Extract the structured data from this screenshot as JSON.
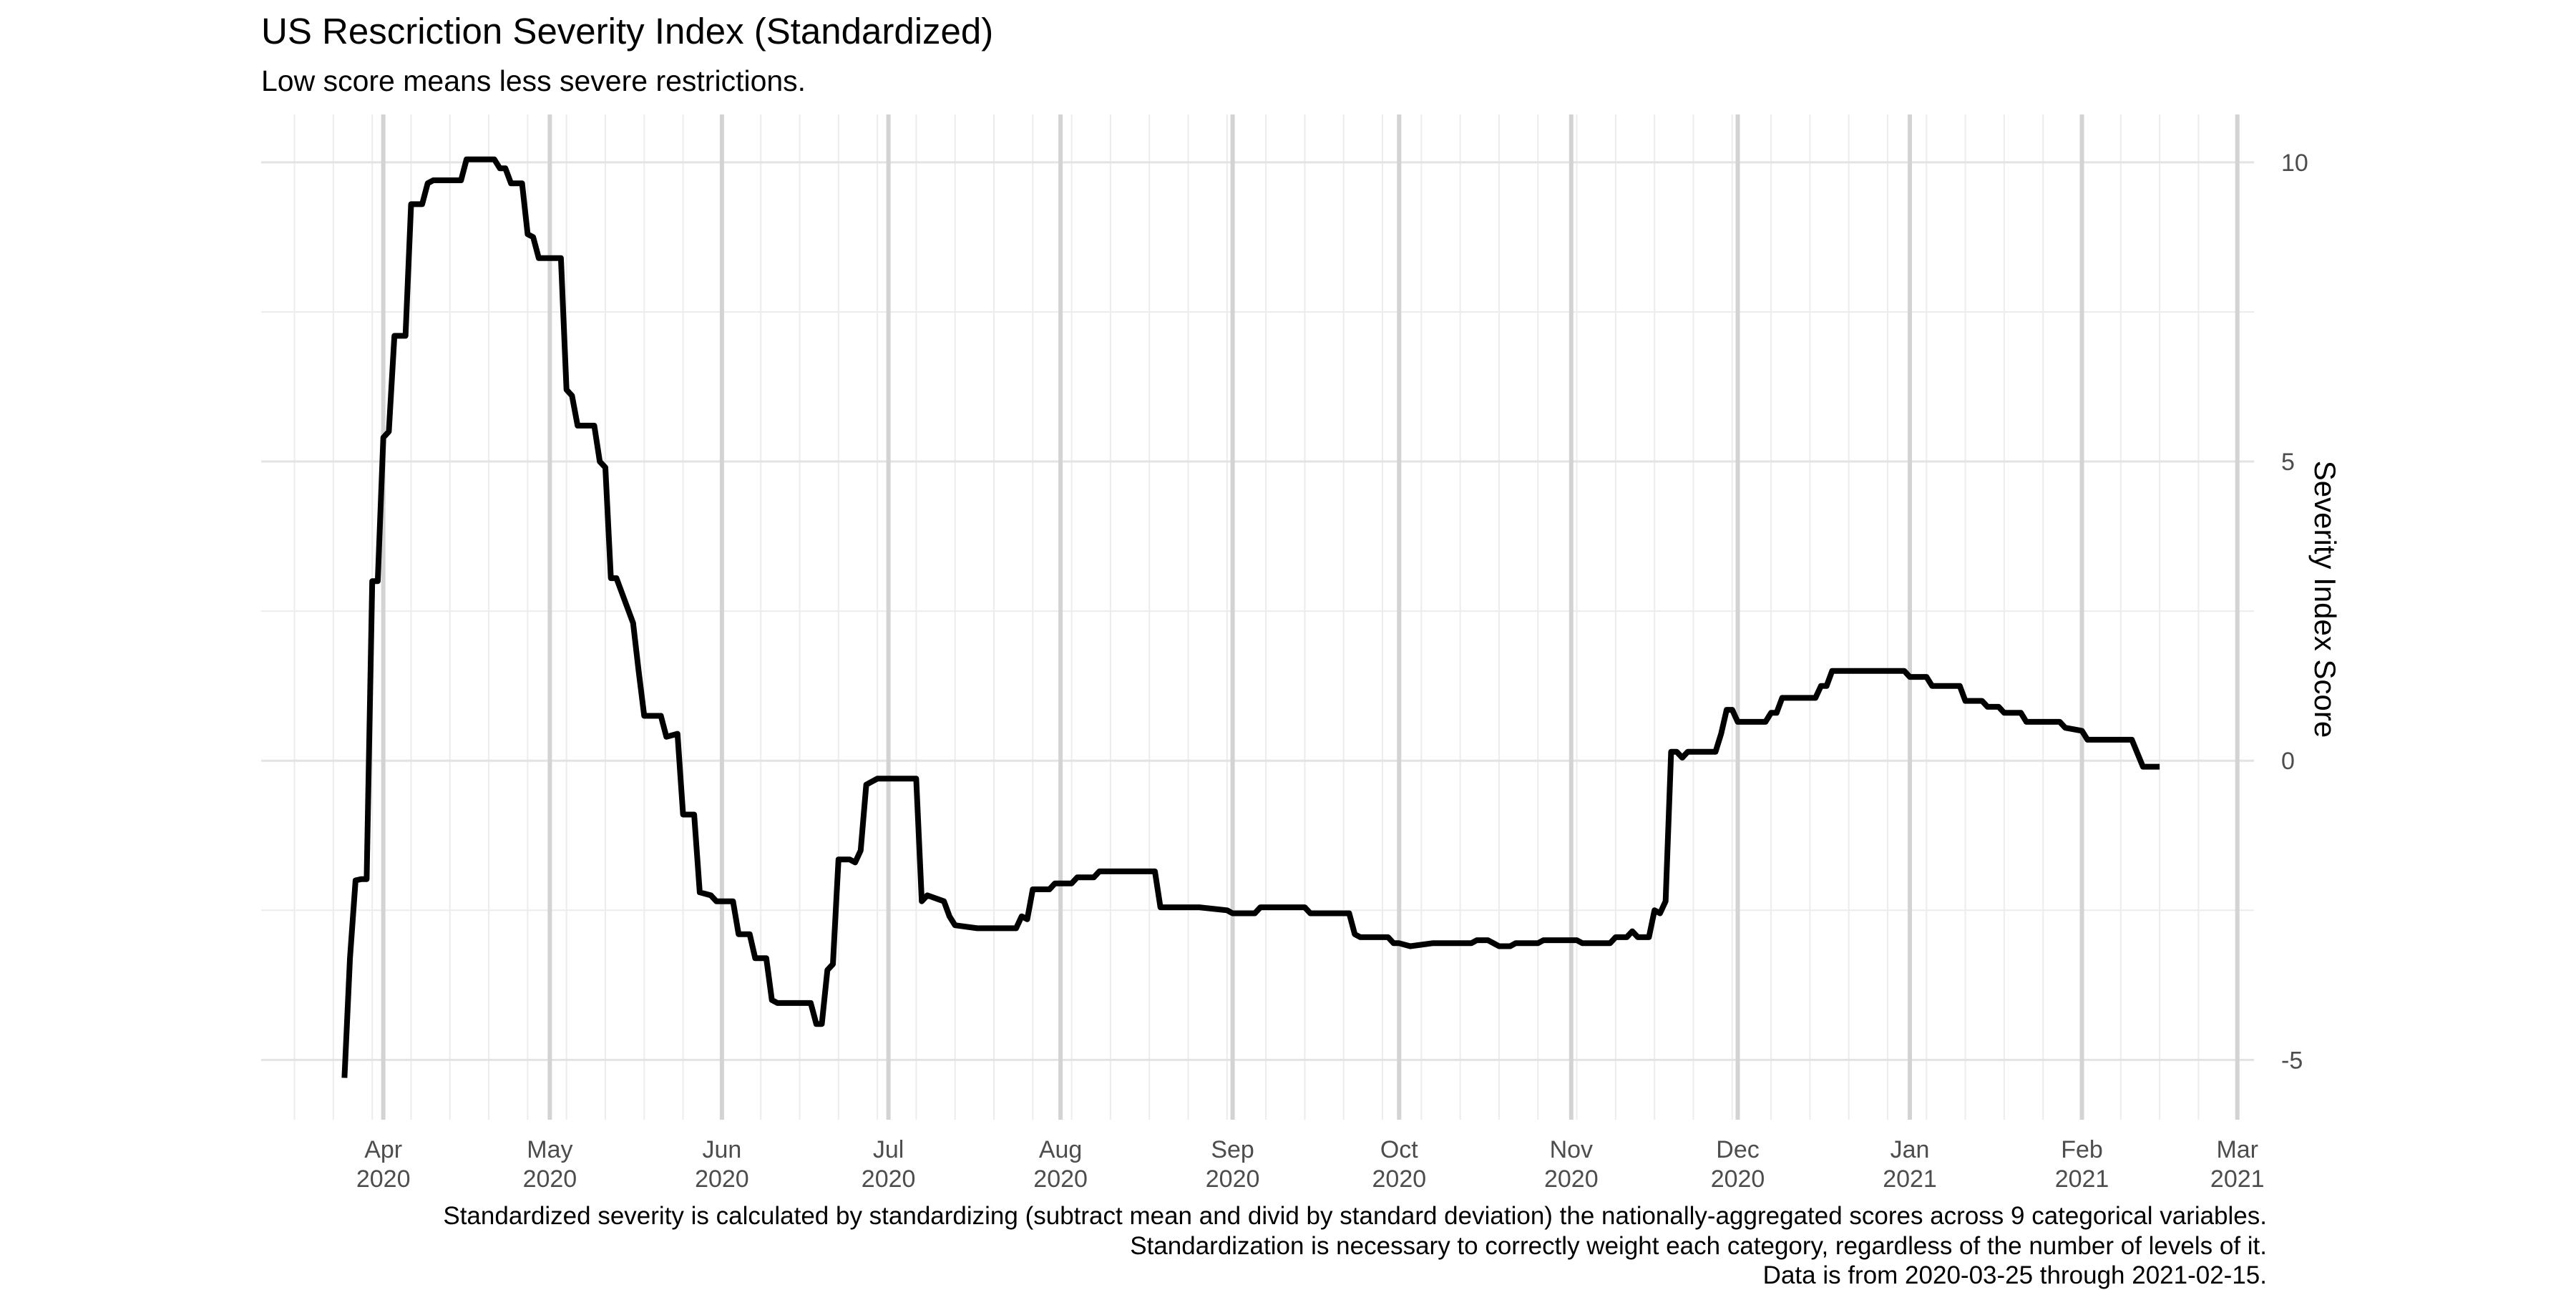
{
  "chart_data": {
    "type": "line",
    "title": "US Rescriction Severity Index (Standardized)",
    "subtitle": "Low score means less severe restrictions.",
    "xlabel": "",
    "ylabel": "Severity Index Score",
    "ylim": [
      -6.0,
      10.8
    ],
    "xlim": [
      "2020-03-10",
      "2021-03-04"
    ],
    "y_ticks": [
      -5,
      0,
      5,
      10
    ],
    "y_axis_position": "right",
    "grid": true,
    "legend": "none",
    "line_color": "#000000",
    "x_ticks": [
      {
        "date": "2020-04-01",
        "month": "Apr",
        "year": "2020"
      },
      {
        "date": "2020-05-01",
        "month": "May",
        "year": "2020"
      },
      {
        "date": "2020-06-01",
        "month": "Jun",
        "year": "2020"
      },
      {
        "date": "2020-07-01",
        "month": "Jul",
        "year": "2020"
      },
      {
        "date": "2020-08-01",
        "month": "Aug",
        "year": "2020"
      },
      {
        "date": "2020-09-01",
        "month": "Sep",
        "year": "2020"
      },
      {
        "date": "2020-10-01",
        "month": "Oct",
        "year": "2020"
      },
      {
        "date": "2020-11-01",
        "month": "Nov",
        "year": "2020"
      },
      {
        "date": "2020-12-01",
        "month": "Dec",
        "year": "2020"
      },
      {
        "date": "2021-01-01",
        "month": "Jan",
        "year": "2021"
      },
      {
        "date": "2021-02-01",
        "month": "Feb",
        "year": "2021"
      },
      {
        "date": "2021-03-01",
        "month": "Mar",
        "year": "2021"
      }
    ],
    "series": [
      {
        "values": [
          [
            "2020-03-25",
            -5.3
          ],
          [
            "2020-03-26",
            -3.3
          ],
          [
            "2020-03-27",
            -2.0
          ],
          [
            "2020-03-28",
            -1.98
          ],
          [
            "2020-03-29",
            -1.98
          ],
          [
            "2020-03-30",
            3.0
          ],
          [
            "2020-03-31",
            3.0
          ],
          [
            "2020-04-01",
            5.4
          ],
          [
            "2020-04-02",
            5.5
          ],
          [
            "2020-04-03",
            7.1
          ],
          [
            "2020-04-05",
            7.1
          ],
          [
            "2020-04-06",
            9.3
          ],
          [
            "2020-04-08",
            9.3
          ],
          [
            "2020-04-09",
            9.65
          ],
          [
            "2020-04-10",
            9.7
          ],
          [
            "2020-04-15",
            9.7
          ],
          [
            "2020-04-16",
            10.05
          ],
          [
            "2020-04-21",
            10.05
          ],
          [
            "2020-04-22",
            9.9
          ],
          [
            "2020-04-23",
            9.9
          ],
          [
            "2020-04-24",
            9.65
          ],
          [
            "2020-04-26",
            9.65
          ],
          [
            "2020-04-27",
            8.8
          ],
          [
            "2020-04-28",
            8.75
          ],
          [
            "2020-04-29",
            8.4
          ],
          [
            "2020-05-03",
            8.4
          ],
          [
            "2020-05-04",
            6.2
          ],
          [
            "2020-05-05",
            6.1
          ],
          [
            "2020-05-06",
            5.6
          ],
          [
            "2020-05-09",
            5.6
          ],
          [
            "2020-05-10",
            5.0
          ],
          [
            "2020-05-11",
            4.9
          ],
          [
            "2020-05-12",
            3.05
          ],
          [
            "2020-05-13",
            3.05
          ],
          [
            "2020-05-16",
            2.3
          ],
          [
            "2020-05-17",
            1.5
          ],
          [
            "2020-05-18",
            0.75
          ],
          [
            "2020-05-21",
            0.75
          ],
          [
            "2020-05-22",
            0.4
          ],
          [
            "2020-05-24",
            0.45
          ],
          [
            "2020-05-25",
            -0.9
          ],
          [
            "2020-05-27",
            -0.9
          ],
          [
            "2020-05-28",
            -2.2
          ],
          [
            "2020-05-30",
            -2.25
          ],
          [
            "2020-05-31",
            -2.35
          ],
          [
            "2020-06-03",
            -2.35
          ],
          [
            "2020-06-04",
            -2.9
          ],
          [
            "2020-06-06",
            -2.9
          ],
          [
            "2020-06-07",
            -3.3
          ],
          [
            "2020-06-09",
            -3.3
          ],
          [
            "2020-06-10",
            -4.0
          ],
          [
            "2020-06-11",
            -4.05
          ],
          [
            "2020-06-17",
            -4.05
          ],
          [
            "2020-06-18",
            -4.4
          ],
          [
            "2020-06-19",
            -4.4
          ],
          [
            "2020-06-20",
            -3.5
          ],
          [
            "2020-06-21",
            -3.4
          ],
          [
            "2020-06-22",
            -1.65
          ],
          [
            "2020-06-24",
            -1.65
          ],
          [
            "2020-06-25",
            -1.7
          ],
          [
            "2020-06-26",
            -1.5
          ],
          [
            "2020-06-27",
            -0.4
          ],
          [
            "2020-06-28",
            -0.35
          ],
          [
            "2020-06-29",
            -0.3
          ],
          [
            "2020-07-06",
            -0.3
          ],
          [
            "2020-07-07",
            -2.35
          ],
          [
            "2020-07-08",
            -2.25
          ],
          [
            "2020-07-11",
            -2.35
          ],
          [
            "2020-07-12",
            -2.6
          ],
          [
            "2020-07-13",
            -2.75
          ],
          [
            "2020-07-17",
            -2.8
          ],
          [
            "2020-07-24",
            -2.8
          ],
          [
            "2020-07-25",
            -2.6
          ],
          [
            "2020-07-26",
            -2.65
          ],
          [
            "2020-07-27",
            -2.15
          ],
          [
            "2020-07-30",
            -2.15
          ],
          [
            "2020-07-31",
            -2.05
          ],
          [
            "2020-08-03",
            -2.05
          ],
          [
            "2020-08-04",
            -1.95
          ],
          [
            "2020-08-07",
            -1.95
          ],
          [
            "2020-08-08",
            -1.85
          ],
          [
            "2020-08-09",
            -1.85
          ],
          [
            "2020-08-18",
            -1.85
          ],
          [
            "2020-08-19",
            -2.45
          ],
          [
            "2020-08-26",
            -2.45
          ],
          [
            "2020-08-31",
            -2.5
          ],
          [
            "2020-09-01",
            -2.55
          ],
          [
            "2020-09-05",
            -2.55
          ],
          [
            "2020-09-06",
            -2.45
          ],
          [
            "2020-09-14",
            -2.45
          ],
          [
            "2020-09-15",
            -2.55
          ],
          [
            "2020-09-22",
            -2.55
          ],
          [
            "2020-09-23",
            -2.9
          ],
          [
            "2020-09-24",
            -2.95
          ],
          [
            "2020-09-29",
            -2.95
          ],
          [
            "2020-09-30",
            -3.05
          ],
          [
            "2020-10-01",
            -3.05
          ],
          [
            "2020-10-03",
            -3.1
          ],
          [
            "2020-10-07",
            -3.05
          ],
          [
            "2020-10-14",
            -3.05
          ],
          [
            "2020-10-15",
            -3.0
          ],
          [
            "2020-10-17",
            -3.0
          ],
          [
            "2020-10-18",
            -3.05
          ],
          [
            "2020-10-19",
            -3.1
          ],
          [
            "2020-10-21",
            -3.1
          ],
          [
            "2020-10-22",
            -3.05
          ],
          [
            "2020-10-26",
            -3.05
          ],
          [
            "2020-10-27",
            -3.0
          ],
          [
            "2020-11-02",
            -3.0
          ],
          [
            "2020-11-03",
            -3.05
          ],
          [
            "2020-11-08",
            -3.05
          ],
          [
            "2020-11-09",
            -2.95
          ],
          [
            "2020-11-11",
            -2.95
          ],
          [
            "2020-11-12",
            -2.85
          ],
          [
            "2020-11-13",
            -2.95
          ],
          [
            "2020-11-15",
            -2.95
          ],
          [
            "2020-11-16",
            -2.5
          ],
          [
            "2020-11-17",
            -2.55
          ],
          [
            "2020-11-18",
            -2.35
          ],
          [
            "2020-11-19",
            0.15
          ],
          [
            "2020-11-20",
            0.15
          ],
          [
            "2020-11-21",
            0.05
          ],
          [
            "2020-11-22",
            0.15
          ],
          [
            "2020-11-27",
            0.15
          ],
          [
            "2020-11-28",
            0.45
          ],
          [
            "2020-11-29",
            0.85
          ],
          [
            "2020-11-30",
            0.85
          ],
          [
            "2020-12-01",
            0.65
          ],
          [
            "2020-12-06",
            0.65
          ],
          [
            "2020-12-07",
            0.8
          ],
          [
            "2020-12-08",
            0.8
          ],
          [
            "2020-12-09",
            1.05
          ],
          [
            "2020-12-15",
            1.05
          ],
          [
            "2020-12-16",
            1.25
          ],
          [
            "2020-12-17",
            1.25
          ],
          [
            "2020-12-18",
            1.5
          ],
          [
            "2020-12-31",
            1.5
          ],
          [
            "2021-01-01",
            1.4
          ],
          [
            "2021-01-04",
            1.4
          ],
          [
            "2021-01-05",
            1.25
          ],
          [
            "2021-01-10",
            1.25
          ],
          [
            "2021-01-11",
            1.0
          ],
          [
            "2021-01-14",
            1.0
          ],
          [
            "2021-01-15",
            0.9
          ],
          [
            "2021-01-17",
            0.9
          ],
          [
            "2021-01-18",
            0.8
          ],
          [
            "2021-01-21",
            0.8
          ],
          [
            "2021-01-22",
            0.65
          ],
          [
            "2021-01-28",
            0.65
          ],
          [
            "2021-01-29",
            0.55
          ],
          [
            "2021-02-01",
            0.5
          ],
          [
            "2021-02-02",
            0.35
          ],
          [
            "2021-02-10",
            0.35
          ],
          [
            "2021-02-12",
            -0.1
          ],
          [
            "2021-02-15",
            -0.1
          ]
        ]
      }
    ]
  },
  "captions": [
    "Standardized severity is calculated by standardizing (subtract mean and divid by standard deviation) the nationally-aggregated scores across 9 categorical variables.",
    "Standardization is necessary to correctly weight each category, regardless of the number of levels of it.",
    "Data is from 2020-03-25 through 2021-02-15."
  ]
}
